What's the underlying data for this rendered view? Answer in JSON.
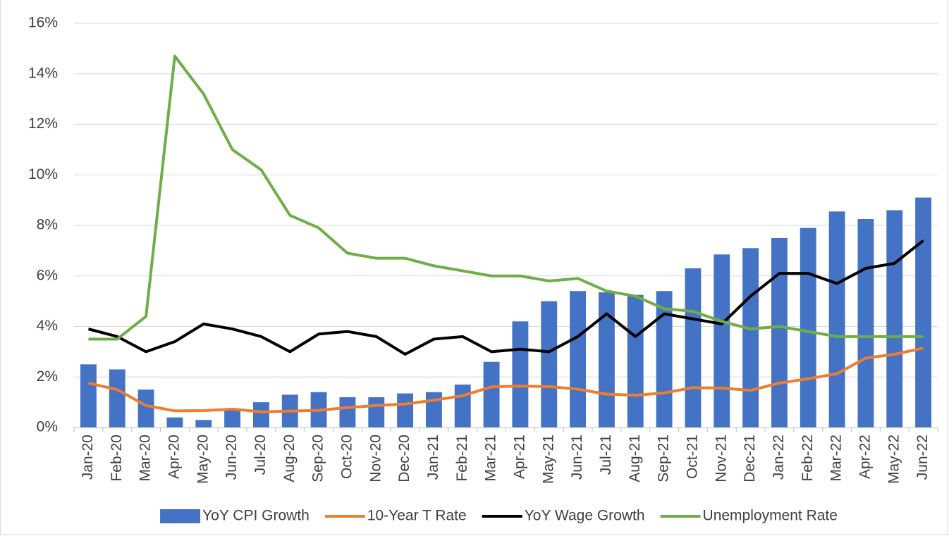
{
  "chart_data": {
    "type": "bar-line",
    "categories": [
      "Jan-20",
      "Feb-20",
      "Mar-20",
      "Apr-20",
      "May-20",
      "Jun-20",
      "Jul-20",
      "Aug-20",
      "Sep-20",
      "Oct-20",
      "Nov-20",
      "Dec-20",
      "Jan-21",
      "Feb-21",
      "Mar-21",
      "Apr-21",
      "May-21",
      "Jun-21",
      "Jul-21",
      "Aug-21",
      "Sep-21",
      "Oct-21",
      "Nov-21",
      "Dec-21",
      "Jan-22",
      "Feb-22",
      "Mar-22",
      "Apr-22",
      "May-22",
      "Jun-22"
    ],
    "series": [
      {
        "name": "YoY CPI Growth",
        "type": "bar",
        "color": "#4472c4",
        "values": [
          2.5,
          2.3,
          1.5,
          0.4,
          0.3,
          0.7,
          1.0,
          1.3,
          1.4,
          1.2,
          1.2,
          1.35,
          1.4,
          1.7,
          2.6,
          4.2,
          5.0,
          5.4,
          5.35,
          5.25,
          5.4,
          6.3,
          6.85,
          7.1,
          7.5,
          7.9,
          8.55,
          8.25,
          8.6,
          9.1
        ]
      },
      {
        "name": "10-Year T Rate",
        "type": "line",
        "color": "#ed7d31",
        "values": [
          1.76,
          1.5,
          0.87,
          0.66,
          0.67,
          0.73,
          0.62,
          0.65,
          0.68,
          0.79,
          0.87,
          0.93,
          1.08,
          1.26,
          1.61,
          1.64,
          1.62,
          1.52,
          1.32,
          1.28,
          1.37,
          1.58,
          1.56,
          1.47,
          1.76,
          1.93,
          2.13,
          2.75,
          2.9,
          3.14
        ]
      },
      {
        "name": "YoY Wage Growth",
        "type": "line",
        "color": "#000000",
        "values": [
          3.9,
          3.6,
          3.0,
          3.4,
          4.1,
          3.9,
          3.6,
          3.0,
          3.7,
          3.8,
          3.6,
          2.9,
          3.5,
          3.6,
          3.0,
          3.1,
          3.0,
          3.6,
          4.5,
          3.6,
          4.5,
          4.3,
          4.1,
          5.2,
          6.1,
          6.1,
          5.7,
          6.3,
          6.5,
          7.4
        ]
      },
      {
        "name": "Unemployment Rate",
        "type": "line",
        "color": "#70ad47",
        "values": [
          3.5,
          3.5,
          4.4,
          14.7,
          13.2,
          11.0,
          10.2,
          8.4,
          7.9,
          6.9,
          6.7,
          6.7,
          6.4,
          6.2,
          6.0,
          6.0,
          5.8,
          5.9,
          5.4,
          5.2,
          4.7,
          4.6,
          4.2,
          3.9,
          4.0,
          3.8,
          3.6,
          3.6,
          3.6,
          3.6
        ]
      }
    ],
    "ylim": [
      0,
      16
    ],
    "yticks": [
      {
        "value": 0,
        "label": "0%"
      },
      {
        "value": 2,
        "label": "2%"
      },
      {
        "value": 4,
        "label": "4%"
      },
      {
        "value": 6,
        "label": "6%"
      },
      {
        "value": 8,
        "label": "8%"
      },
      {
        "value": 10,
        "label": "10%"
      },
      {
        "value": 12,
        "label": "12%"
      },
      {
        "value": 14,
        "label": "14%"
      },
      {
        "value": 16,
        "label": "16%"
      }
    ],
    "grid": true,
    "legend": "bottom"
  }
}
